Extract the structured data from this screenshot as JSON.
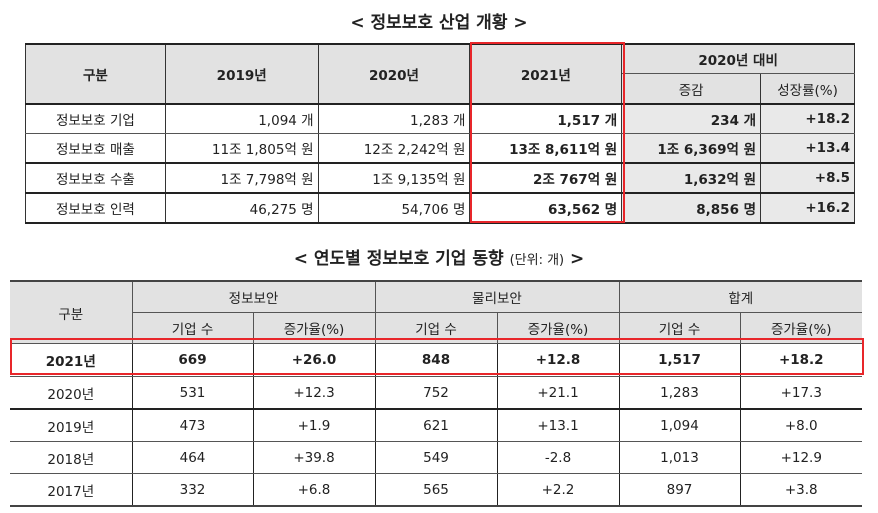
{
  "overview": {
    "title": "< 정보보호 산업 개황 >",
    "headers": {
      "category": "구분",
      "y2019": "2019년",
      "y2020": "2020년",
      "y2021": "2021년",
      "compare": "2020년 대비",
      "change": "증감",
      "growth": "성장률(%)"
    },
    "rows": [
      {
        "label": "정보보호 기업",
        "y2019": "1,094 개",
        "y2020": "1,283 개",
        "y2021": "1,517 개",
        "change": "234 개",
        "growth": "+18.2"
      },
      {
        "label": "정보보호 매출",
        "y2019": "11조 1,805억 원",
        "y2020": "12조 2,242억 원",
        "y2021": "13조 8,611억 원",
        "change": "1조 6,369억 원",
        "growth": "+13.4"
      },
      {
        "label": "정보보호 수출",
        "y2019": "1조 7,798억 원",
        "y2020": "1조 9,135억 원",
        "y2021": "2조 767억 원",
        "change": "1,632억 원",
        "growth": "+8.5"
      },
      {
        "label": "정보보호 인력",
        "y2019": "46,275 명",
        "y2020": "54,706 명",
        "y2021": "63,562 명",
        "change": "8,856 명",
        "growth": "+16.2"
      }
    ],
    "highlight_color": "#e8262a"
  },
  "trend": {
    "title": "< 연도별 정보보호 기업 동향",
    "unit": "(단위: 개)",
    "title_end": ">",
    "headers": {
      "category": "구분",
      "infosec": "정보보안",
      "physical": "물리보안",
      "total": "합계",
      "count": "기업 수",
      "rate": "증가율(%)"
    },
    "rows": [
      {
        "year": "2021년",
        "info_n": "669",
        "info_r": "+26.0",
        "phys_n": "848",
        "phys_r": "+12.8",
        "tot_n": "1,517",
        "tot_r": "+18.2"
      },
      {
        "year": "2020년",
        "info_n": "531",
        "info_r": "+12.3",
        "phys_n": "752",
        "phys_r": "+21.1",
        "tot_n": "1,283",
        "tot_r": "+17.3"
      },
      {
        "year": "2019년",
        "info_n": "473",
        "info_r": "+1.9",
        "phys_n": "621",
        "phys_r": "+13.1",
        "tot_n": "1,094",
        "tot_r": "+8.0"
      },
      {
        "year": "2018년",
        "info_n": "464",
        "info_r": "+39.8",
        "phys_n": "549",
        "phys_r": "-2.8",
        "tot_n": "1,013",
        "tot_r": "+12.9"
      },
      {
        "year": "2017년",
        "info_n": "332",
        "info_r": "+6.8",
        "phys_n": "565",
        "phys_r": "+2.2",
        "tot_n": "897",
        "tot_r": "+3.8"
      }
    ]
  }
}
